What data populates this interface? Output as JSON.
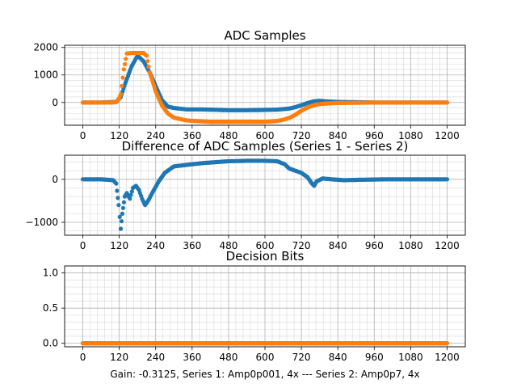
{
  "figure": {
    "caption": "Gain: -0.3125, Series 1: Amp0p001, 4x --- Series 2: Amp0p7, 4x"
  },
  "colors": {
    "series1": "#1f77b4",
    "series2": "#ff7f0e",
    "grid_major": "#b0b0b0",
    "grid_minor": "#d7d7d7"
  },
  "chart_data": [
    {
      "type": "scatter",
      "title": "ADC Samples",
      "xlabel": "",
      "ylabel": "",
      "xlim": [
        -60,
        1260
      ],
      "ylim": [
        -830,
        2080
      ],
      "xticks": [
        0,
        120,
        240,
        360,
        480,
        600,
        720,
        840,
        960,
        1080,
        1200
      ],
      "yticks": [
        0,
        1000,
        2000
      ],
      "ytick_labels": [
        "0",
        "1000",
        "2000"
      ],
      "grid": "major and minor",
      "legend": "none",
      "series": [
        {
          "color": "#1f77b4",
          "x": [
            0,
            60,
            110,
            125,
            140,
            160,
            180,
            200,
            220,
            240,
            260,
            280,
            300,
            340,
            380,
            420,
            480,
            540,
            600,
            640,
            680,
            700,
            720,
            740,
            760,
            780,
            800,
            840,
            900,
            960,
            1020,
            1080,
            1140,
            1200
          ],
          "y": [
            0,
            0,
            20,
            200,
            700,
            1300,
            1700,
            1500,
            1100,
            600,
            100,
            -150,
            -200,
            -250,
            -250,
            -260,
            -280,
            -280,
            -270,
            -260,
            -220,
            -170,
            -100,
            -20,
            40,
            60,
            40,
            20,
            10,
            0,
            0,
            0,
            0,
            0
          ]
        },
        {
          "color": "#ff7f0e",
          "x": [
            0,
            100,
            115,
            125,
            135,
            145,
            160,
            200,
            210,
            220,
            240,
            260,
            280,
            300,
            340,
            380,
            420,
            480,
            540,
            600,
            620,
            640,
            660,
            680,
            700,
            720,
            740,
            760,
            780,
            800,
            840,
            900,
            960,
            1020,
            1080,
            1140,
            1200
          ],
          "y": [
            0,
            0,
            50,
            300,
            1200,
            1780,
            1800,
            1800,
            1700,
            1100,
            400,
            -100,
            -400,
            -550,
            -650,
            -680,
            -700,
            -700,
            -700,
            -700,
            -690,
            -670,
            -630,
            -560,
            -450,
            -300,
            -180,
            -100,
            -60,
            -40,
            -20,
            -10,
            0,
            0,
            0,
            0,
            0
          ]
        }
      ]
    },
    {
      "type": "scatter",
      "title": "Difference of ADC Samples (Series 1 - Series 2)",
      "xlabel": "",
      "ylabel": "",
      "xlim": [
        -60,
        1260
      ],
      "ylim": [
        -1300,
        560
      ],
      "xticks": [
        0,
        120,
        240,
        360,
        480,
        600,
        720,
        840,
        960,
        1080,
        1200
      ],
      "yticks": [
        -1000,
        0
      ],
      "ytick_labels": [
        "−1000",
        "0"
      ],
      "grid": "major and minor",
      "legend": "none",
      "series": [
        {
          "color": "#1f77b4",
          "x": [
            0,
            60,
            100,
            110,
            118,
            125,
            130,
            138,
            145,
            155,
            165,
            175,
            185,
            195,
            205,
            215,
            230,
            250,
            270,
            300,
            360,
            400,
            440,
            480,
            540,
            600,
            640,
            665,
            680,
            700,
            720,
            740,
            755,
            762,
            770,
            790,
            820,
            860,
            920,
            1000,
            1080,
            1140,
            1200
          ],
          "y": [
            0,
            0,
            -20,
            -100,
            -600,
            -1150,
            -800,
            -400,
            -320,
            -450,
            -200,
            -150,
            -250,
            -450,
            -600,
            -500,
            -300,
            -50,
            150,
            300,
            350,
            380,
            400,
            420,
            430,
            430,
            420,
            350,
            250,
            200,
            150,
            50,
            -100,
            -150,
            -50,
            20,
            0,
            -20,
            -10,
            0,
            0,
            0,
            0
          ]
        }
      ]
    },
    {
      "type": "scatter",
      "title": "Decision Bits",
      "xlabel": "Gain: -0.3125, Series 1: Amp0p001, 4x --- Series 2: Amp0p7, 4x",
      "ylabel": "",
      "xlim": [
        -60,
        1260
      ],
      "ylim": [
        -0.05,
        1.1
      ],
      "xticks": [
        0,
        120,
        240,
        360,
        480,
        600,
        720,
        840,
        960,
        1080,
        1200
      ],
      "yticks": [
        0.0,
        0.5,
        1.0
      ],
      "ytick_labels": [
        "0.0",
        "0.5",
        "1.0"
      ],
      "grid": "major and minor",
      "legend": "none",
      "series": [
        {
          "color": "#1f77b4",
          "x": [
            0,
            1200
          ],
          "y": [
            0,
            0
          ]
        },
        {
          "color": "#ff7f0e",
          "x": [
            0,
            1200
          ],
          "y": [
            0,
            0
          ]
        }
      ]
    }
  ]
}
